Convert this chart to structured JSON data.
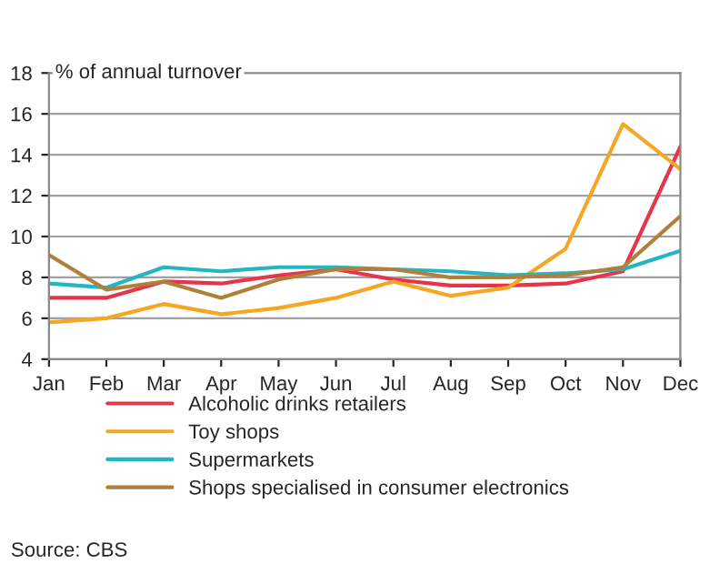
{
  "chart_data": {
    "type": "line",
    "ylabel": "% of annual turnover",
    "categories": [
      "Jan",
      "Feb",
      "Mar",
      "Apr",
      "May",
      "Jun",
      "Jul",
      "Aug",
      "Sep",
      "Oct",
      "Nov",
      "Dec"
    ],
    "series": [
      {
        "name": "Alcoholic drinks retailers",
        "color": "#e8344a",
        "values": [
          7.0,
          7.0,
          7.8,
          7.7,
          8.1,
          8.4,
          7.9,
          7.6,
          7.6,
          7.7,
          8.3,
          14.4
        ]
      },
      {
        "name": "Toy shops",
        "color": "#f5a623",
        "values": [
          5.8,
          6.0,
          6.7,
          6.2,
          6.5,
          7.0,
          7.8,
          7.1,
          7.5,
          9.4,
          15.5,
          13.3
        ]
      },
      {
        "name": "Supermarkets",
        "color": "#22b5c2",
        "values": [
          7.7,
          7.5,
          8.5,
          8.3,
          8.5,
          8.5,
          8.4,
          8.3,
          8.1,
          8.2,
          8.4,
          9.3
        ]
      },
      {
        "name": "Shops specialised in consumer electronics",
        "color": "#b0803a",
        "values": [
          9.1,
          7.4,
          7.8,
          7.0,
          7.9,
          8.4,
          8.4,
          8.0,
          8.0,
          8.1,
          8.5,
          11.0
        ]
      }
    ],
    "ylim": [
      4,
      18
    ],
    "yticks": [
      4,
      6,
      8,
      10,
      12,
      14,
      16,
      18
    ],
    "grid": "y",
    "legend": "bottom",
    "marker": "none",
    "line_style": "solid",
    "annotations": [
      "Source: CBS"
    ]
  }
}
